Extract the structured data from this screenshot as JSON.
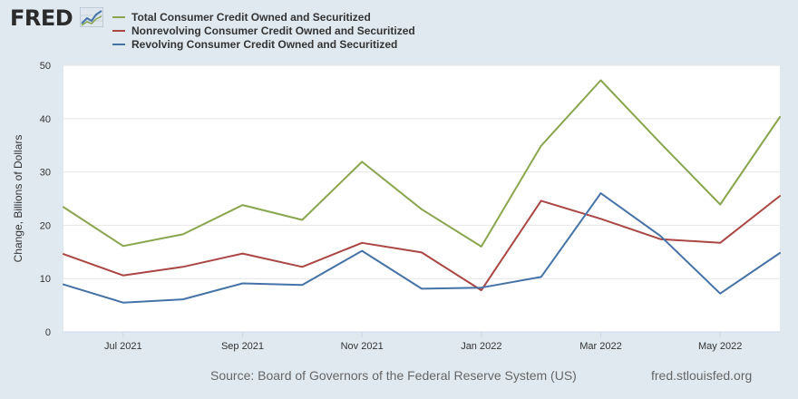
{
  "brand": {
    "logo": "FRED",
    "site": "fred.stlouisfed.org"
  },
  "source": "Source: Board of Governors of the Federal Reserve System (US)",
  "chart_data": {
    "type": "line",
    "title": "",
    "xlabel": "",
    "ylabel": "Change, Billions of Dollars",
    "ylim": [
      0,
      50
    ],
    "yticks": [
      0,
      10,
      20,
      30,
      40,
      50
    ],
    "grid": true,
    "legend_position": "top-left",
    "x": [
      "2021-06",
      "2021-07",
      "2021-08",
      "2021-09",
      "2021-10",
      "2021-11",
      "2021-12",
      "2022-01",
      "2022-02",
      "2022-03",
      "2022-04",
      "2022-05",
      "2022-06"
    ],
    "xtick_labels": [
      {
        "index": 1,
        "label": "Jul 2021"
      },
      {
        "index": 3,
        "label": "Sep 2021"
      },
      {
        "index": 5,
        "label": "Nov 2021"
      },
      {
        "index": 7,
        "label": "Jan 2022"
      },
      {
        "index": 9,
        "label": "Mar 2022"
      },
      {
        "index": 11,
        "label": "May 2022"
      }
    ],
    "series": [
      {
        "name": "Total Consumer Credit Owned and Securitized",
        "color": "#89a54e",
        "values": [
          23.4,
          16.1,
          18.3,
          23.8,
          21.0,
          31.9,
          23.0,
          16.0,
          34.9,
          47.2,
          35.4,
          23.9,
          40.3
        ]
      },
      {
        "name": "Nonrevolving Consumer Credit Owned and Securitized",
        "color": "#aa4643",
        "values": [
          14.6,
          10.6,
          12.2,
          14.7,
          12.2,
          16.7,
          14.9,
          7.8,
          24.6,
          21.2,
          17.4,
          16.7,
          25.5
        ]
      },
      {
        "name": "Revolving Consumer Credit Owned and Securitized",
        "color": "#4572a7",
        "values": [
          8.9,
          5.5,
          6.1,
          9.1,
          8.8,
          15.2,
          8.1,
          8.3,
          10.3,
          26.0,
          18.0,
          7.2,
          14.8
        ]
      }
    ]
  }
}
